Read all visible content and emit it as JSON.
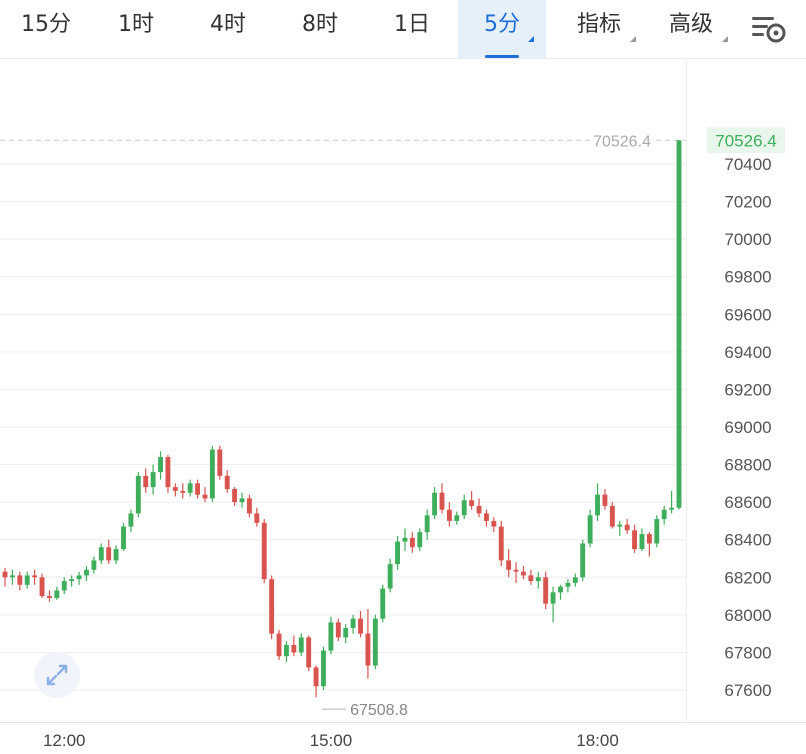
{
  "tabs": [
    {
      "label": "15分",
      "active": false,
      "dropdown": false
    },
    {
      "label": "1时",
      "active": false,
      "dropdown": false
    },
    {
      "label": "4时",
      "active": false,
      "dropdown": false
    },
    {
      "label": "8时",
      "active": false,
      "dropdown": false
    },
    {
      "label": "1日",
      "active": false,
      "dropdown": false
    },
    {
      "label": "5分",
      "active": true,
      "dropdown": true
    },
    {
      "label": "指标",
      "active": false,
      "dropdown": true
    },
    {
      "label": "高级",
      "active": false,
      "dropdown": true
    }
  ],
  "icons": {
    "settings": "chart-settings-icon",
    "expand": "expand-arrows-icon"
  },
  "colors": {
    "up": "#3fae5c",
    "down": "#d9534f",
    "accent": "#1e6fd9",
    "grid": "#eeeeee"
  },
  "chart_data": {
    "type": "candlestick",
    "interval": "5分",
    "y_axis": {
      "ticks": [
        "70400",
        "70200",
        "70000",
        "69800",
        "69600",
        "69400",
        "69200",
        "69000",
        "68800",
        "68600",
        "68400",
        "68200",
        "68000",
        "67800",
        "67600"
      ],
      "range": [
        67480,
        70560
      ],
      "position": "right"
    },
    "x_axis": {
      "ticks": [
        {
          "label": "12:00",
          "index": 8
        },
        {
          "label": "15:00",
          "index": 44
        },
        {
          "label": "18:00",
          "index": 80
        }
      ]
    },
    "last_price": "70526.4",
    "last_price_line": "70526.4",
    "low_marker": "67508.8",
    "grid": true,
    "candles": [
      [
        68230,
        68250,
        68150,
        68200
      ],
      [
        68200,
        68240,
        68160,
        68210
      ],
      [
        68210,
        68230,
        68130,
        68160
      ],
      [
        68160,
        68230,
        68140,
        68210
      ],
      [
        68210,
        68240,
        68160,
        68200
      ],
      [
        68200,
        68220,
        68090,
        68100
      ],
      [
        68100,
        68130,
        68070,
        68090
      ],
      [
        68090,
        68150,
        68080,
        68130
      ],
      [
        68130,
        68200,
        68110,
        68180
      ],
      [
        68180,
        68210,
        68150,
        68190
      ],
      [
        68190,
        68230,
        68160,
        68210
      ],
      [
        68210,
        68260,
        68180,
        68240
      ],
      [
        68240,
        68310,
        68220,
        68290
      ],
      [
        68290,
        68380,
        68270,
        68360
      ],
      [
        68360,
        68400,
        68270,
        68290
      ],
      [
        68290,
        68370,
        68270,
        68350
      ],
      [
        68350,
        68490,
        68340,
        68470
      ],
      [
        68470,
        68560,
        68440,
        68540
      ],
      [
        68540,
        68760,
        68520,
        68740
      ],
      [
        68740,
        68780,
        68650,
        68680
      ],
      [
        68680,
        68800,
        68640,
        68760
      ],
      [
        68760,
        68870,
        68720,
        68840
      ],
      [
        68840,
        68850,
        68650,
        68680
      ],
      [
        68680,
        68700,
        68630,
        68660
      ],
      [
        68660,
        68700,
        68620,
        68650
      ],
      [
        68650,
        68720,
        68630,
        68700
      ],
      [
        68700,
        68720,
        68620,
        68640
      ],
      [
        68640,
        68680,
        68600,
        68620
      ],
      [
        68620,
        68900,
        68600,
        68880
      ],
      [
        68880,
        68900,
        68720,
        68740
      ],
      [
        68740,
        68770,
        68650,
        68670
      ],
      [
        68670,
        68680,
        68580,
        68600
      ],
      [
        68600,
        68650,
        68570,
        68620
      ],
      [
        68620,
        68640,
        68520,
        68540
      ],
      [
        68540,
        68570,
        68470,
        68490
      ],
      [
        68490,
        68510,
        68170,
        68190
      ],
      [
        68190,
        68210,
        67870,
        67900
      ],
      [
        67900,
        67920,
        67760,
        67780
      ],
      [
        67780,
        67860,
        67750,
        67840
      ],
      [
        67840,
        67890,
        67780,
        67800
      ],
      [
        67800,
        67900,
        67780,
        67880
      ],
      [
        67880,
        67890,
        67700,
        67720
      ],
      [
        67720,
        67730,
        67560,
        67620
      ],
      [
        67620,
        67830,
        67600,
        67810
      ],
      [
        67810,
        67990,
        67790,
        67960
      ],
      [
        67960,
        67980,
        67860,
        67880
      ],
      [
        67880,
        67950,
        67850,
        67930
      ],
      [
        67930,
        68000,
        67900,
        67980
      ],
      [
        67980,
        68020,
        67880,
        67900
      ],
      [
        67900,
        68030,
        67660,
        67730
      ],
      [
        67730,
        68000,
        67710,
        67980
      ],
      [
        67980,
        68160,
        67960,
        68140
      ],
      [
        68140,
        68300,
        68120,
        68270
      ],
      [
        68270,
        68420,
        68240,
        68390
      ],
      [
        68390,
        68460,
        68340,
        68410
      ],
      [
        68410,
        68440,
        68330,
        68360
      ],
      [
        68360,
        68460,
        68340,
        68440
      ],
      [
        68440,
        68560,
        68400,
        68530
      ],
      [
        68530,
        68680,
        68510,
        68650
      ],
      [
        68650,
        68700,
        68540,
        68560
      ],
      [
        68560,
        68600,
        68470,
        68500
      ],
      [
        68500,
        68550,
        68480,
        68530
      ],
      [
        68530,
        68640,
        68510,
        68610
      ],
      [
        68610,
        68660,
        68560,
        68580
      ],
      [
        68580,
        68620,
        68520,
        68540
      ],
      [
        68540,
        68560,
        68470,
        68500
      ],
      [
        68500,
        68520,
        68440,
        68470
      ],
      [
        68470,
        68500,
        68260,
        68290
      ],
      [
        68290,
        68350,
        68200,
        68240
      ],
      [
        68240,
        68280,
        68170,
        68230
      ],
      [
        68230,
        68260,
        68190,
        68210
      ],
      [
        68210,
        68240,
        68160,
        68180
      ],
      [
        68180,
        68230,
        68140,
        68200
      ],
      [
        68200,
        68230,
        68030,
        68060
      ],
      [
        68060,
        68150,
        67960,
        68120
      ],
      [
        68120,
        68160,
        68080,
        68150
      ],
      [
        68150,
        68190,
        68120,
        68170
      ],
      [
        68170,
        68220,
        68150,
        68200
      ],
      [
        68200,
        68400,
        68180,
        68380
      ],
      [
        68380,
        68560,
        68360,
        68530
      ],
      [
        68530,
        68700,
        68500,
        68640
      ],
      [
        68640,
        68670,
        68560,
        68580
      ],
      [
        68580,
        68600,
        68460,
        68470
      ],
      [
        68470,
        68500,
        68420,
        68480
      ],
      [
        68480,
        68510,
        68430,
        68450
      ],
      [
        68450,
        68480,
        68330,
        68350
      ],
      [
        68350,
        68460,
        68340,
        68430
      ],
      [
        68430,
        68440,
        68310,
        68380
      ],
      [
        68380,
        68530,
        68360,
        68510
      ],
      [
        68510,
        68580,
        68480,
        68560
      ],
      [
        68560,
        68660,
        68540,
        68570
      ],
      [
        68570,
        70526.4,
        68560,
        70526.4
      ]
    ]
  }
}
